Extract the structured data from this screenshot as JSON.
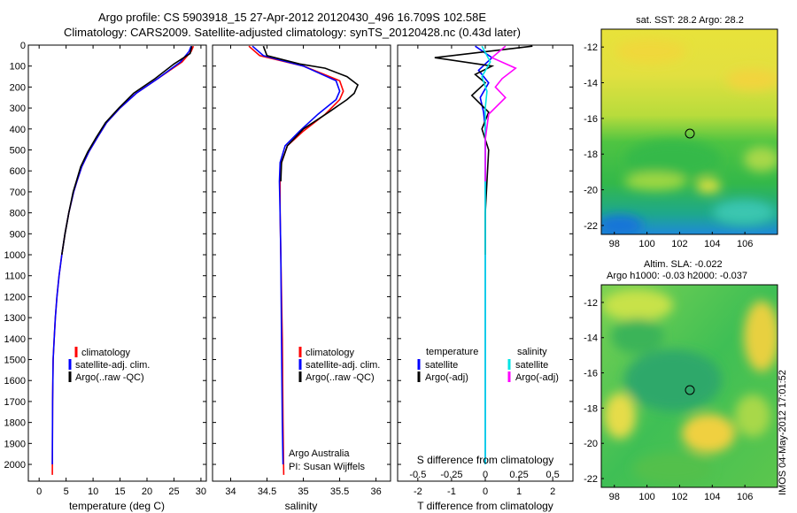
{
  "header": {
    "title_line1": "Argo profile: CS 5903918_15 27-Apr-2012 20120430_496 16.709S 102.58E",
    "title_line2": "Climatology: CARS2009. Satellite-adjusted climatology: synTS_20120428.nc (0.43d later)"
  },
  "stamp": "IMOS 04-May-2012 17:01:52",
  "colors": {
    "climatology": "#ff0000",
    "satellite": "#0000ff",
    "argo": "#000000",
    "sal_satellite": "#00e5e5",
    "sal_argo": "#ff00ff"
  },
  "chart_data": [
    {
      "type": "line",
      "name": "temperature-profile",
      "xlabel": "temperature (deg C)",
      "xlim": [
        -2,
        31
      ],
      "xticks": [
        0,
        5,
        10,
        15,
        20,
        25,
        30
      ],
      "ylim": [
        2080,
        0
      ],
      "yticks": [
        0,
        100,
        200,
        300,
        400,
        500,
        600,
        700,
        800,
        900,
        1000,
        1100,
        1200,
        1300,
        1400,
        1500,
        1600,
        1700,
        1800,
        1900,
        2000
      ],
      "legend": [
        "climatology",
        "satellite-adj. clim.",
        "Argo(..raw -QC)"
      ],
      "series": [
        {
          "name": "climatology",
          "color": "#ff0000",
          "x": [
            28.6,
            28.2,
            26.5,
            22,
            18,
            15,
            12.5,
            10.8,
            9.2,
            7.9,
            7.0,
            6.4,
            5.5,
            4.8,
            4.2,
            3.7,
            3.3,
            3.0,
            2.8,
            2.6,
            2.5,
            2.45
          ],
          "y": [
            5,
            30,
            80,
            160,
            230,
            300,
            370,
            440,
            510,
            580,
            650,
            700,
            800,
            900,
            1000,
            1100,
            1200,
            1300,
            1400,
            1500,
            1700,
            2050
          ]
        },
        {
          "name": "satellite-adj. clim.",
          "color": "#0000ff",
          "x": [
            28.2,
            27.8,
            26.2,
            22,
            18,
            15,
            12.5,
            10.8,
            9.2,
            7.9,
            7.0,
            6.4,
            5.5,
            4.8,
            4.2,
            3.7,
            3.3,
            3.0,
            2.8,
            2.6,
            2.5,
            2.45
          ],
          "y": [
            5,
            30,
            80,
            160,
            230,
            300,
            370,
            440,
            510,
            580,
            650,
            700,
            800,
            900,
            1000,
            1100,
            1200,
            1300,
            1400,
            1500,
            1700,
            2000
          ]
        },
        {
          "name": "Argo(..raw -QC)",
          "color": "#000000",
          "x": [
            28.3,
            28.0,
            25.0,
            21.5,
            17.5,
            14.8,
            12.3,
            10.6,
            9.0,
            7.7,
            6.9,
            6.3,
            5.5,
            4.8,
            4.2
          ],
          "y": [
            5,
            40,
            90,
            160,
            230,
            300,
            370,
            440,
            510,
            580,
            650,
            700,
            800,
            900,
            1000
          ]
        }
      ]
    },
    {
      "type": "line",
      "name": "salinity-profile",
      "xlabel": "salinity",
      "xlim": [
        33.75,
        36.2
      ],
      "xticks": [
        34,
        34.5,
        35,
        35.5,
        36
      ],
      "xticklabels": [
        "34",
        "34.5",
        "35",
        "35.5",
        "36"
      ],
      "ylim": [
        2080,
        0
      ],
      "legend": [
        "climatology",
        "satellite-adj. clim.",
        "Argo(..raw -QC)"
      ],
      "annotation": [
        "Argo Australia",
        "PI: Susan Wijffels"
      ],
      "series": [
        {
          "name": "climatology",
          "color": "#ff0000",
          "x": [
            34.25,
            34.4,
            35.0,
            35.5,
            35.55,
            35.5,
            35.3,
            35.0,
            34.78,
            34.7,
            34.68,
            34.68,
            34.69,
            34.71,
            34.72,
            34.73
          ],
          "y": [
            5,
            50,
            100,
            170,
            220,
            260,
            330,
            410,
            480,
            560,
            650,
            800,
            1000,
            1400,
            1800,
            2050
          ]
        },
        {
          "name": "satellite-adj. clim.",
          "color": "#0000ff",
          "x": [
            34.3,
            34.45,
            35.0,
            35.45,
            35.5,
            35.45,
            35.2,
            34.95,
            34.75,
            34.68,
            34.67,
            34.68,
            34.69,
            34.7,
            34.71,
            34.72
          ],
          "y": [
            5,
            50,
            100,
            170,
            220,
            260,
            330,
            410,
            480,
            560,
            650,
            800,
            1000,
            1400,
            1800,
            2000
          ]
        },
        {
          "name": "Argo(..raw -QC)",
          "color": "#000000",
          "x": [
            34.45,
            34.5,
            34.95,
            35.3,
            35.6,
            35.75,
            35.7,
            35.6,
            35.35,
            35.0,
            34.78,
            34.7,
            34.69
          ],
          "y": [
            5,
            50,
            90,
            110,
            150,
            190,
            230,
            260,
            320,
            400,
            480,
            560,
            650
          ]
        }
      ]
    },
    {
      "type": "line",
      "name": "difference-profile",
      "xlabel": "T difference from climatology",
      "xlabel_top": "S difference from climatology",
      "xlim": [
        -2.6,
        2.6
      ],
      "xticks": [
        -2,
        -1,
        0,
        1,
        2
      ],
      "xticks_top": [
        -0.5,
        -0.25,
        0,
        0.25,
        0.5
      ],
      "xticklabels_top": [
        "-0.5",
        "-0.25",
        "0",
        "0.25",
        "0.5"
      ],
      "ylim": [
        2080,
        0
      ],
      "legend_headers": [
        "temperature",
        "salinity"
      ],
      "legend": [
        "satellite",
        "Argo(-adj)",
        "satellite",
        "Argo(-adj)"
      ],
      "series": [
        {
          "name": "satellite",
          "color": "#0000ff",
          "x": [
            -0.3,
            0.2,
            -0.2,
            0.1,
            -0.15,
            -0.05,
            0.0,
            0.0,
            0.0,
            0.0,
            0.0,
            0.0
          ],
          "y": [
            5,
            60,
            120,
            180,
            250,
            320,
            400,
            500,
            700,
            1000,
            1500,
            2000
          ]
        },
        {
          "name": "Argo(-adj)",
          "color": "#000000",
          "x": [
            1.4,
            -1.5,
            0.2,
            -0.3,
            0.0,
            -0.4,
            0.1,
            -0.1,
            0.1,
            0.05,
            0.0,
            0.0
          ],
          "y": [
            5,
            60,
            100,
            140,
            180,
            240,
            320,
            400,
            500,
            650,
            800,
            1000
          ]
        },
        {
          "name": "satellite",
          "color": "#00e5e5",
          "x": [
            -0.1,
            0.15,
            -0.1,
            0.05,
            0.0,
            0.0,
            0.0,
            0.0,
            0.0
          ],
          "y": [
            5,
            80,
            150,
            220,
            300,
            400,
            600,
            1000,
            2000
          ]
        },
        {
          "name": "Argo(-adj)",
          "color": "#ff00ff",
          "x": [
            0.6,
            0.2,
            0.9,
            0.5,
            0.3,
            0.6,
            0.1,
            0.0,
            0.0
          ],
          "y": [
            5,
            60,
            110,
            160,
            200,
            250,
            330,
            450,
            650
          ]
        }
      ]
    }
  ],
  "maps": [
    {
      "name": "sst-map",
      "title": "sat. SST: 28.2 Argo: 28.2",
      "yticks": [
        "-12",
        "-14",
        "-16",
        "-18",
        "-20",
        "-22"
      ],
      "xticks": [
        "98",
        "100",
        "102",
        "104",
        "106"
      ],
      "marker": {
        "lon": 102.58,
        "lat": -16.709
      }
    },
    {
      "name": "sla-map",
      "title_line1": "Altim. SLA: -0.022",
      "title_line2": "Argo h1000: -0.03 h2000: -0.037",
      "yticks": [
        "-12",
        "-14",
        "-16",
        "-18",
        "-20",
        "-22"
      ],
      "xticks": [
        "98",
        "100",
        "102",
        "104",
        "106"
      ],
      "marker": {
        "lon": 102.58,
        "lat": -16.709
      }
    }
  ]
}
